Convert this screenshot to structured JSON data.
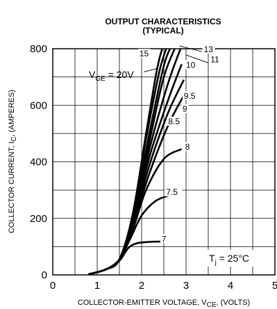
{
  "chart_data": {
    "type": "line",
    "title": "OUTPUT CHARACTERISTICS",
    "subtitle": "(TYPICAL)",
    "xlabel": "COLLECTOR-EMITTER VOLTAGE, V_CE, (VOLTS)",
    "xlabel_parts": {
      "main": "COLLECTOR-EMITTER VOLTAGE, V",
      "sub": "CE",
      "tail": ", (VOLTS)"
    },
    "ylabel": "COLLECTOR CURRENT, I_C, (AMPERES)",
    "ylabel_parts": {
      "main": "COLLECTOR CURRENT, I",
      "sub": "C",
      "tail": ", (AMPERES)"
    },
    "xlim": [
      0,
      5
    ],
    "ylim": [
      0,
      800
    ],
    "xticks": [
      0,
      1,
      2,
      3,
      4,
      5
    ],
    "yticks": [
      0,
      200,
      400,
      600,
      800
    ],
    "grid": true,
    "annotation_vge": {
      "main": "V",
      "sub": "GE",
      "tail": " = 20V"
    },
    "annotation_tj": {
      "main": "T",
      "sub": "j",
      "tail": " = 25°C"
    },
    "series": [
      {
        "name": "7",
        "x": [
          0.8,
          1.2,
          1.5,
          1.7,
          1.9,
          2.2,
          2.5
        ],
        "y": [
          2,
          20,
          50,
          95,
          112,
          117,
          118
        ]
      },
      {
        "name": "7.5",
        "x": [
          0.8,
          1.2,
          1.5,
          1.75,
          2.0,
          2.3,
          2.6
        ],
        "y": [
          2,
          20,
          55,
          130,
          210,
          260,
          280
        ]
      },
      {
        "name": "8",
        "x": [
          0.8,
          1.2,
          1.5,
          1.8,
          2.1,
          2.5,
          2.9
        ],
        "y": [
          2,
          20,
          55,
          160,
          300,
          410,
          445
        ]
      },
      {
        "name": "8.5",
        "x": [
          0.8,
          1.2,
          1.5,
          1.8,
          2.2,
          2.6,
          2.95
        ],
        "y": [
          2,
          20,
          55,
          180,
          370,
          530,
          635
        ]
      },
      {
        "name": "9",
        "x": [
          0.8,
          1.2,
          1.5,
          1.8,
          2.2,
          2.6,
          2.95
        ],
        "y": [
          2,
          20,
          55,
          185,
          400,
          575,
          690
        ]
      },
      {
        "name": "9.5",
        "x": [
          0.8,
          1.2,
          1.5,
          1.8,
          2.2,
          2.6,
          2.9
        ],
        "y": [
          2,
          20,
          55,
          190,
          430,
          620,
          745
        ]
      },
      {
        "name": "10",
        "x": [
          0.8,
          1.2,
          1.5,
          1.8,
          2.2,
          2.6,
          2.9
        ],
        "y": [
          2,
          20,
          55,
          195,
          460,
          680,
          810
        ]
      },
      {
        "name": "11",
        "x": [
          0.8,
          1.2,
          1.5,
          1.8,
          2.2,
          2.5,
          2.8
        ],
        "y": [
          2,
          20,
          55,
          200,
          490,
          700,
          820
        ]
      },
      {
        "name": "13",
        "x": [
          0.8,
          1.2,
          1.5,
          1.8,
          2.2,
          2.5,
          2.7
        ],
        "y": [
          2,
          20,
          55,
          205,
          520,
          740,
          820
        ]
      },
      {
        "name": "15",
        "x": [
          0.8,
          1.2,
          1.5,
          1.8,
          2.1,
          2.4,
          2.6
        ],
        "y": [
          2,
          20,
          55,
          210,
          480,
          720,
          820
        ]
      },
      {
        "name": "20",
        "x": [
          0.8,
          1.2,
          1.5,
          1.8,
          2.1,
          2.35,
          2.5
        ],
        "y": [
          2,
          20,
          55,
          215,
          500,
          730,
          820
        ]
      }
    ],
    "labels": [
      {
        "text": "7",
        "x": 2.45,
        "y": 120
      },
      {
        "text": "7.5",
        "x": 2.55,
        "y": 285
      },
      {
        "text": "8",
        "x": 2.98,
        "y": 445
      },
      {
        "text": "8.5",
        "x": 2.6,
        "y": 535
      },
      {
        "text": "9",
        "x": 2.92,
        "y": 580
      },
      {
        "text": "9.5",
        "x": 2.95,
        "y": 625
      },
      {
        "text": "10",
        "x": 3.0,
        "y": 735
      },
      {
        "text": "11",
        "x": 3.55,
        "y": 755
      },
      {
        "text": "13",
        "x": 3.4,
        "y": 790
      },
      {
        "text": "15",
        "x": 1.95,
        "y": 775
      }
    ]
  }
}
